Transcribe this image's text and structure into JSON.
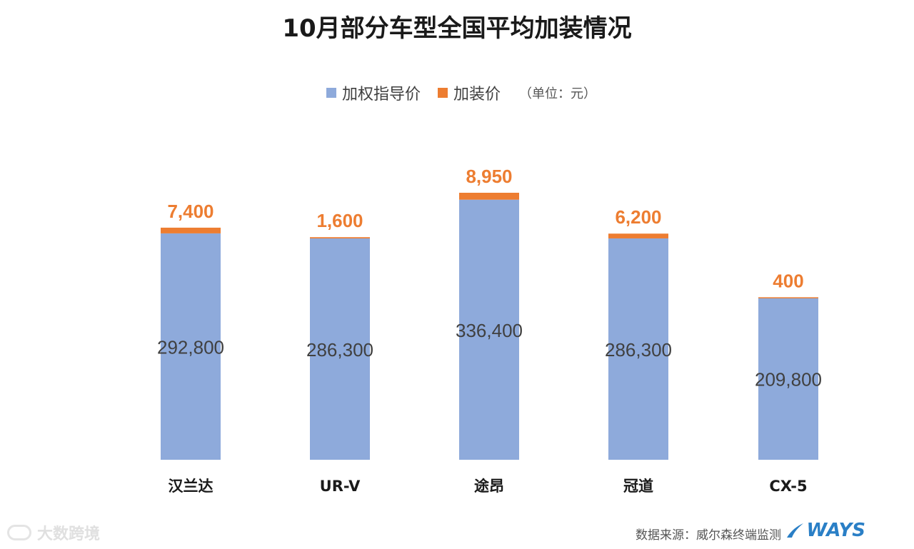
{
  "title": "10月部分车型全国平均加装情况",
  "legend": {
    "items": [
      {
        "label": "加权指导价",
        "color": "#8eaadb"
      },
      {
        "label": "加装价",
        "color": "#ed7d31"
      }
    ],
    "unit": "（单位：元）"
  },
  "footer": {
    "source": "数据来源：威尔森终端监测",
    "logo": "WAYS",
    "watermark": "大数跨境"
  },
  "chart_data": {
    "type": "bar",
    "stacked": true,
    "categories": [
      "汉兰达",
      "UR-V",
      "途昂",
      "冠道",
      "CX-5"
    ],
    "series": [
      {
        "name": "加权指导价",
        "values": [
          292800,
          286300,
          336400,
          286300,
          209800
        ],
        "color": "#8eaadb"
      },
      {
        "name": "加装价",
        "values": [
          7400,
          1600,
          8950,
          6200,
          400
        ],
        "color": "#ed7d31"
      }
    ],
    "data_labels": {
      "base": [
        "292,800",
        "286,300",
        "336,400",
        "286,300",
        "209,800"
      ],
      "addon": [
        "7,400",
        "1,600",
        "8,950",
        "6,200",
        "400"
      ]
    },
    "grid": false,
    "legend_position": "top"
  }
}
